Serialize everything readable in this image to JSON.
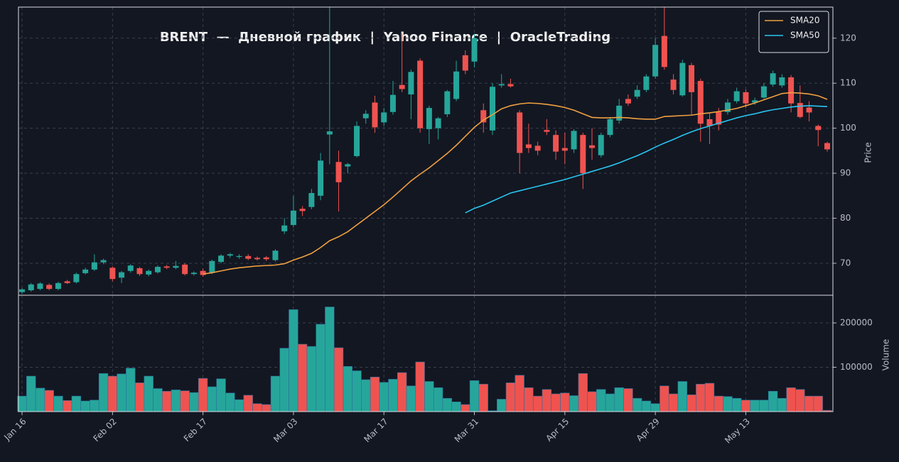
{
  "chart_data": [
    {
      "type": "candlestick",
      "title": "BRENT  —  Дневной график  |  Yahoo Finance  |  OracleTrading",
      "ylabel": "Price",
      "categories": [
        "Jan 16",
        null,
        null,
        null,
        null,
        null,
        null,
        null,
        null,
        null,
        "Feb 02",
        null,
        null,
        null,
        null,
        null,
        null,
        null,
        null,
        null,
        "Feb 17",
        null,
        null,
        null,
        null,
        null,
        null,
        null,
        null,
        null,
        "Mar 03",
        null,
        null,
        null,
        null,
        null,
        null,
        null,
        null,
        null,
        "Mar 17",
        null,
        null,
        null,
        null,
        null,
        null,
        null,
        null,
        null,
        "Mar 31",
        null,
        null,
        null,
        null,
        null,
        null,
        null,
        null,
        null,
        "Apr 15",
        null,
        null,
        null,
        null,
        null,
        null,
        null,
        null,
        null,
        "Apr 29",
        null,
        null,
        null,
        null,
        null,
        null,
        null,
        null,
        null,
        "May 13",
        null,
        null,
        null,
        null,
        null,
        null,
        null,
        null,
        null
      ],
      "open": [
        63.6,
        64.0,
        64.3,
        65.2,
        64.3,
        66.0,
        65.8,
        67.8,
        68.6,
        70.2,
        69.0,
        66.8,
        68.3,
        68.9,
        67.5,
        68.0,
        69.3,
        69.0,
        69.7,
        67.6,
        68.3,
        67.9,
        70.3,
        71.7,
        71.4,
        71.6,
        71.2,
        71.3,
        70.7,
        77.1,
        78.5,
        82.1,
        82.5,
        85.0,
        98.6,
        92.5,
        91.5,
        93.8,
        102.2,
        105.7,
        101.3,
        103.6,
        109.6,
        107.5,
        115.0,
        99.8,
        100.0,
        103.1,
        106.5,
        116.2,
        114.8,
        104.0,
        99.5,
        109.5,
        109.8,
        103.5,
        96.4,
        96.1,
        99.6,
        98.5,
        95.6,
        95.3,
        98.5,
        96.2,
        94.0,
        98.5,
        101.7,
        106.5,
        107.0,
        108.5,
        111.5,
        120.5,
        110.8,
        107.3,
        114.0,
        110.5,
        102.0,
        103.6,
        103.6,
        106.0,
        108.0,
        105.7,
        106.8,
        109.7,
        109.5,
        111.3,
        105.6,
        104.6,
        100.5,
        96.7
      ],
      "high": [
        64.5,
        65.6,
        65.8,
        65.5,
        65.9,
        66.3,
        67.9,
        69.0,
        72.0,
        71.0,
        69.3,
        68.3,
        69.8,
        69.2,
        68.6,
        69.5,
        69.6,
        70.5,
        70.0,
        68.2,
        68.8,
        70.8,
        72.0,
        72.3,
        72.0,
        72.0,
        71.5,
        71.6,
        73.1,
        80.0,
        85.0,
        82.7,
        86.5,
        94.5,
        127.0,
        95.0,
        92.3,
        101.5,
        104.0,
        107.2,
        104.5,
        110.5,
        121.0,
        113.0,
        115.5,
        105.0,
        102.5,
        108.5,
        115.0,
        117.3,
        121.0,
        105.5,
        110.0,
        112.0,
        111.0,
        104.0,
        101.0,
        97.0,
        102.0,
        99.5,
        99.0,
        99.8,
        99.0,
        100.0,
        99.0,
        102.5,
        106.5,
        107.5,
        109.5,
        112.0,
        120.0,
        127.0,
        112.0,
        115.2,
        114.5,
        111.0,
        103.5,
        104.5,
        106.5,
        109.0,
        108.6,
        106.8,
        110.0,
        112.8,
        112.0,
        111.8,
        109.5,
        106.0,
        100.8,
        97.0
      ],
      "low": [
        63.2,
        63.7,
        64.0,
        64.0,
        64.0,
        65.4,
        65.5,
        67.5,
        68.3,
        69.8,
        66.0,
        65.6,
        67.9,
        67.2,
        67.1,
        67.7,
        68.7,
        68.7,
        67.3,
        67.3,
        67.0,
        67.6,
        70.0,
        71.2,
        71.0,
        70.7,
        70.6,
        70.5,
        70.4,
        76.5,
        78.0,
        80.5,
        82.0,
        84.0,
        92.0,
        81.5,
        90.0,
        93.5,
        101.0,
        99.0,
        100.5,
        103.0,
        108.0,
        102.0,
        99.0,
        96.5,
        97.5,
        102.5,
        106.0,
        112.0,
        113.5,
        99.0,
        98.5,
        109.0,
        109.0,
        90.0,
        94.5,
        94.0,
        98.5,
        93.0,
        92.0,
        94.5,
        86.5,
        93.0,
        93.5,
        98.0,
        101.0,
        105.0,
        106.5,
        108.0,
        111.0,
        113.0,
        107.5,
        107.0,
        103.0,
        97.0,
        96.5,
        99.5,
        103.0,
        105.5,
        104.5,
        105.2,
        106.5,
        109.2,
        109.0,
        103.5,
        102.2,
        101.5,
        96.0,
        94.8
      ],
      "close": [
        64.2,
        65.3,
        65.5,
        64.3,
        65.6,
        65.6,
        67.6,
        68.6,
        70.2,
        70.7,
        66.5,
        68.0,
        69.5,
        67.6,
        68.3,
        69.2,
        69.0,
        69.4,
        67.6,
        67.9,
        67.4,
        70.5,
        71.7,
        72.0,
        71.6,
        71.0,
        70.9,
        70.9,
        72.8,
        78.4,
        81.7,
        81.6,
        85.6,
        92.8,
        99.3,
        88.0,
        92.0,
        100.5,
        103.2,
        100.2,
        103.5,
        107.4,
        108.7,
        112.5,
        100.0,
        104.5,
        102.2,
        108.2,
        112.6,
        112.8,
        120.0,
        101.3,
        109.2,
        109.8,
        109.3,
        94.5,
        95.6,
        95.0,
        99.2,
        94.8,
        95.0,
        99.4,
        90.0,
        95.6,
        98.5,
        102.0,
        105.0,
        105.5,
        108.5,
        111.5,
        118.5,
        113.6,
        108.5,
        114.5,
        108.0,
        101.0,
        100.5,
        100.8,
        105.7,
        108.2,
        105.5,
        106.2,
        109.3,
        112.2,
        111.3,
        105.5,
        102.5,
        103.5,
        99.6,
        95.3
      ],
      "up_color": "#26a69a",
      "down_color": "#ef5350",
      "series": [
        {
          "name": "SMA20",
          "color": "#f0a040",
          "values": [
            null,
            null,
            null,
            null,
            null,
            null,
            null,
            null,
            null,
            null,
            null,
            null,
            null,
            null,
            null,
            null,
            null,
            null,
            null,
            null,
            67.6,
            67.9,
            68.3,
            68.7,
            69.0,
            69.2,
            69.4,
            69.5,
            69.6,
            69.9,
            70.7,
            71.4,
            72.2,
            73.5,
            75.0,
            75.9,
            77.0,
            78.5,
            80.0,
            81.5,
            83.0,
            84.7,
            86.5,
            88.3,
            89.8,
            91.2,
            92.8,
            94.4,
            96.2,
            98.2,
            100.2,
            101.8,
            103.0,
            104.3,
            105.0,
            105.4,
            105.6,
            105.5,
            105.3,
            105.0,
            104.6,
            104.0,
            103.2,
            102.4,
            102.3,
            102.3,
            102.4,
            102.3,
            102.1,
            102.0,
            102.0,
            102.6,
            102.7,
            102.8,
            102.9,
            103.2,
            103.4,
            103.7,
            104.0,
            104.4,
            105.0,
            105.6,
            106.3,
            107.0,
            107.7,
            107.9,
            107.8,
            107.6,
            107.2,
            106.4
          ]
        },
        {
          "name": "SMA50",
          "color": "#29c5f0",
          "values": [
            null,
            null,
            null,
            null,
            null,
            null,
            null,
            null,
            null,
            null,
            null,
            null,
            null,
            null,
            null,
            null,
            null,
            null,
            null,
            null,
            null,
            null,
            null,
            null,
            null,
            null,
            null,
            null,
            null,
            null,
            null,
            null,
            null,
            null,
            null,
            null,
            null,
            null,
            null,
            null,
            null,
            null,
            null,
            null,
            null,
            null,
            null,
            null,
            null,
            81.2,
            82.2,
            82.9,
            83.8,
            84.7,
            85.6,
            86.1,
            86.6,
            87.1,
            87.6,
            88.1,
            88.6,
            89.2,
            89.8,
            90.4,
            91.0,
            91.6,
            92.3,
            93.1,
            93.9,
            94.8,
            95.8,
            96.7,
            97.5,
            98.4,
            99.2,
            99.9,
            100.5,
            101.1,
            101.7,
            102.3,
            102.8,
            103.2,
            103.7,
            104.1,
            104.4,
            104.7,
            104.9,
            105.0,
            104.9,
            104.8
          ]
        }
      ],
      "ylim": [
        62.9,
        126.9
      ],
      "yticks": [
        70,
        80,
        90,
        100,
        110,
        120
      ],
      "grid": true,
      "legend": "upper right"
    },
    {
      "type": "bar",
      "ylabel": "Volume",
      "values": [
        35000,
        80000,
        53000,
        48000,
        35000,
        25000,
        35000,
        24000,
        26000,
        86000,
        80000,
        85000,
        98000,
        65000,
        80000,
        52000,
        46000,
        49000,
        47000,
        43000,
        75000,
        56000,
        74000,
        42000,
        27000,
        37000,
        18000,
        16000,
        80000,
        143000,
        230000,
        152000,
        147000,
        197000,
        236000,
        144000,
        102000,
        92000,
        72000,
        78000,
        66000,
        73000,
        88000,
        58000,
        112000,
        68000,
        54000,
        30000,
        22000,
        16000,
        70000,
        62000,
        2000,
        28000,
        65000,
        82000,
        54000,
        35000,
        50000,
        40000,
        42000,
        36000,
        86000,
        45000,
        50000,
        40000,
        54000,
        52000,
        30000,
        24000,
        18000,
        58000,
        40000,
        68000,
        38000,
        62000,
        64000,
        35000,
        34000,
        30000,
        26000,
        26000,
        26000,
        46000,
        30000,
        54000,
        50000,
        35000,
        35000,
        3000
      ],
      "ylim": [
        0,
        262400
      ],
      "yticks": [
        100000,
        200000
      ],
      "grid": true
    }
  ]
}
